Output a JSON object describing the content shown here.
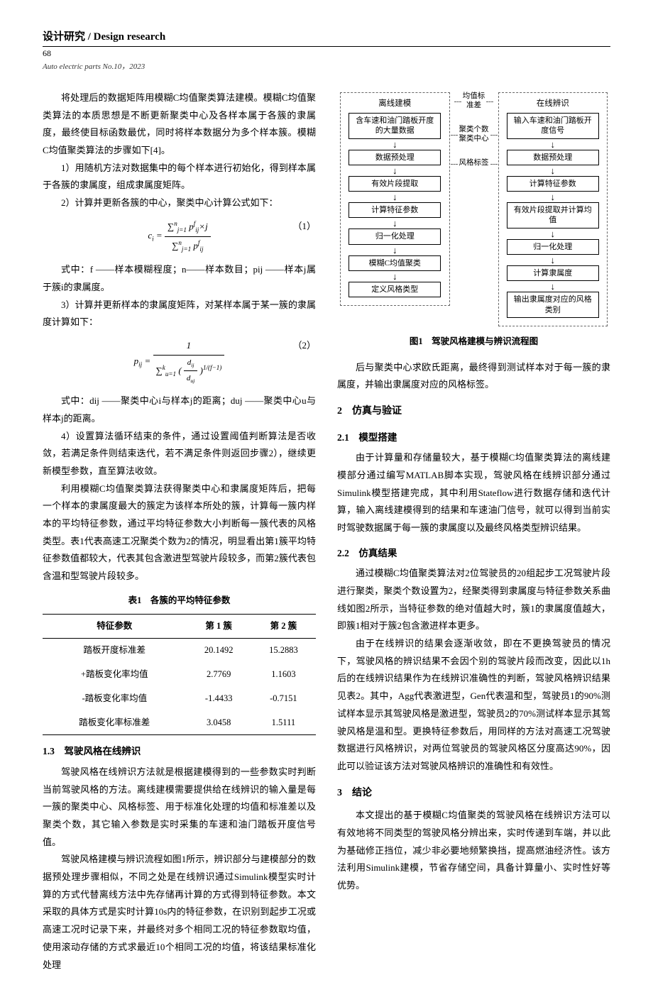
{
  "header": {
    "category": "设计研究 / Design research",
    "page_number": "68",
    "journal": "Auto electric parts  No.10，2023"
  },
  "left_column": {
    "p1": "将处理后的数据矩阵用模糊C均值聚类算法建模。模糊C均值聚类算法的本质思想是不断更新聚类中心及各样本属于各簇的隶属度，最终使目标函数最优，同时将样本数据分为多个样本簇。模糊C均值聚类算法的步骤如下[4]。",
    "step1": "1）用随机方法对数据集中的每个样本进行初始化，得到样本属于各簇的隶属度，组成隶属度矩阵。",
    "step2": "2）计算并更新各簇的中心，聚类中心计算公式如下：",
    "eq1_label": "（1）",
    "eq1_expl": "式中：f ——样本模糊程度；n——样本数目；pij ——样本j属于簇i的隶属度。",
    "step3": "3）计算并更新样本的隶属度矩阵，对某样本属于某一簇的隶属度计算如下：",
    "eq2_label": "（2）",
    "eq2_expl": "式中：dij ——聚类中心i与样本j的距离；duj ——聚类中心u与样本j的距离。",
    "step4": "4）设置算法循环结束的条件，通过设置阈值判断算法是否收敛，若满足条件则结束迭代，若不满足条件则返回步骤2），继续更新模型参数，直至算法收敛。",
    "p2": "利用模糊C均值聚类算法获得聚类中心和隶属度矩阵后，把每一个样本的隶属度最大的簇定为该样本所处的簇，计算每一簇内样本的平均特征参数，通过平均特征参数大小判断每一簇代表的风格类型。表1代表高速工况聚类个数为2的情况，明显看出第1簇平均特征参数值都较大，代表其包含激进型驾驶片段较多，而第2簇代表包含温和型驾驶片段较多。",
    "table1": {
      "caption": "表1　各簇的平均特征参数",
      "columns": [
        "特征参数",
        "第 1 簇",
        "第 2 簇"
      ],
      "rows": [
        [
          "踏板开度标准差",
          "20.1492",
          "15.2883"
        ],
        [
          "+踏板变化率均值",
          "2.7769",
          "1.1603"
        ],
        [
          "-踏板变化率均值",
          "-1.4433",
          "-0.7151"
        ],
        [
          "踏板变化率标准差",
          "3.0458",
          "1.5111"
        ]
      ]
    },
    "sec13_title": "1.3　驾驶风格在线辨识",
    "sec13_p1": "驾驶风格在线辨识方法就是根据建模得到的一些参数实时判断当前驾驶风格的方法。离线建模需要提供给在线辨识的输入量是每一簇的聚类中心、风格标签、用于标准化处理的均值和标准差以及聚类个数，其它输入参数是实时采集的车速和油门踏板开度信号值。",
    "sec13_p2": "驾驶风格建模与辨识流程如图1所示，辨识部分与建模部分的数据预处理步骤相似，不同之处是在线辨识通过Simulink模型实时计算的方式代替离线方法中先存储再计算的方式得到特征参数。本文采取的具体方式是实时计算10s内的特征参数，在识别到起步工况或高速工况时记录下来，并最终对多个相同工况的特征参数取均值，使用滚动存储的方式求最近10个相同工况的均值，将该结果标准化处理"
  },
  "right_column": {
    "flowchart": {
      "left_title": "离线建模",
      "right_title": "在线辨识",
      "left_boxes": [
        "含车速和油门踏板开度的大量数据",
        "数据预处理",
        "有效片段提取",
        "计算特征参数",
        "归一化处理",
        "模糊C均值聚类",
        "定义风格类型"
      ],
      "right_boxes": [
        "输入车速和油门踏板开度信号",
        "数据预处理",
        "计算特征参数",
        "有效片段提取并计算均值",
        "归一化处理",
        "计算隶属度",
        "输出隶属度对应的风格类别"
      ],
      "connectors": [
        "均值标准差",
        "聚类个数聚类中心",
        "风格标签"
      ],
      "caption": "图1　驾驶风格建模与辨识流程图"
    },
    "p_after_fig": "后与聚类中心求欧氏距离，最终得到测试样本对于每一簇的隶属度，并输出隶属度对应的风格标签。",
    "sec2_title": "2　仿真与验证",
    "sec21_title": "2.1　模型搭建",
    "sec21_p": "由于计算量和存储量较大，基于模糊C均值聚类算法的离线建模部分通过编写MATLAB脚本实现，驾驶风格在线辨识部分通过Simulink模型搭建完成，其中利用Stateflow进行数据存储和迭代计算，输入离线建模得到的结果和车速油门信号，就可以得到当前实时驾驶数据属于每一簇的隶属度以及最终风格类型辨识结果。",
    "sec22_title": "2.2　仿真结果",
    "sec22_p1": "通过模糊C均值聚类算法对2位驾驶员的20组起步工况驾驶片段进行聚类，聚类个数设置为2，经聚类得到隶属度与特征参数关系曲线如图2所示，当特征参数的绝对值越大时，簇1的隶属度值越大，即簇1相对于簇2包含激进样本更多。",
    "sec22_p2": "由于在线辨识的结果会逐渐收敛，即在不更换驾驶员的情况下，驾驶风格的辨识结果不会因个别的驾驶片段而改变，因此以1h后的在线辨识结果作为在线辨识准确性的判断，驾驶风格辨识结果见表2。其中，Agg代表激进型，Gen代表温和型，驾驶员1的90%测试样本显示其驾驶风格是激进型，驾驶员2的70%测试样本显示其驾驶风格是温和型。更换特征参数后，用同样的方法对高速工况驾驶数据进行风格辨识，对两位驾驶员的驾驶风格区分度高达90%，因此可以验证该方法对驾驶风格辨识的准确性和有效性。",
    "sec3_title": "3　结论",
    "sec3_p": "本文提出的基于模糊C均值聚类的驾驶风格在线辨识方法可以有效地将不同类型的驾驶风格分辨出来，实时传递到车端，并以此为基础修正挡位，减少非必要地频繁换挡，提高燃油经济性。该方法利用Simulink建模，节省存储空间，具备计算量小、实时性好等优势。"
  },
  "styles": {
    "border_color": "#000000",
    "dashed_color": "#666666",
    "background": "#ffffff",
    "text_color": "#000000"
  }
}
